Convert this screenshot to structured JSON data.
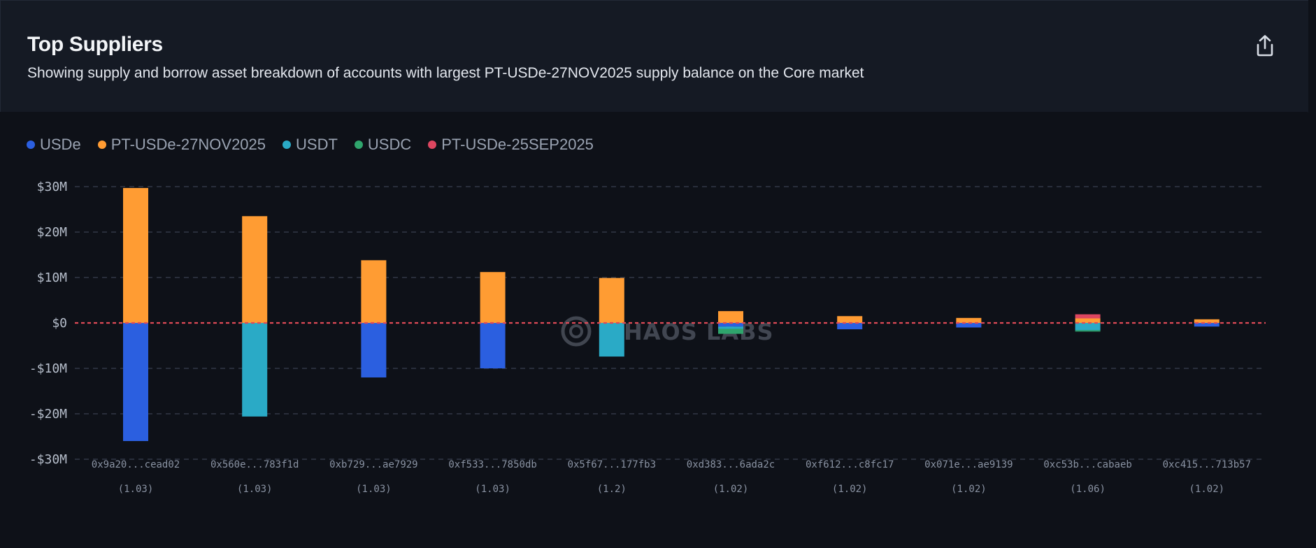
{
  "header": {
    "title": "Top Suppliers",
    "subtitle": "Showing supply and borrow asset breakdown of accounts with largest PT-USDe-27NOV2025 supply balance on the Core market",
    "export_icon": "share-upload-icon"
  },
  "watermark": {
    "text": "HAOS LABS",
    "icon": "chaos-labs-logo-icon"
  },
  "colors": {
    "background": "#0e1118",
    "header_bg": "#151a24",
    "grid": "#3a4150",
    "zero_line": "#e04a57"
  },
  "chart_data": {
    "type": "bar",
    "stacked": true,
    "ylim": [
      -30,
      30
    ],
    "y_unit": "$M",
    "y_ticks": [
      {
        "value": 30,
        "label": "$30M"
      },
      {
        "value": 20,
        "label": "$20M"
      },
      {
        "value": 10,
        "label": "$10M"
      },
      {
        "value": 0,
        "label": "$0"
      },
      {
        "value": -10,
        "label": "-$10M"
      },
      {
        "value": -20,
        "label": "-$20M"
      },
      {
        "value": -30,
        "label": "-$30M"
      }
    ],
    "grid": true,
    "legend_position": "top-left",
    "categories": [
      "0x9a20...cead02",
      "0x560e...783f1d",
      "0xb729...ae7929",
      "0xf533...7850db",
      "0x5f67...177fb3",
      "0xd383...6ada2c",
      "0xf612...c8fc17",
      "0x071e...ae9139",
      "0xc53b...cabaeb",
      "0xc415...713b57"
    ],
    "sublabels": [
      "(1.03)",
      "(1.03)",
      "(1.03)",
      "(1.03)",
      "(1.2)",
      "(1.02)",
      "(1.02)",
      "(1.02)",
      "(1.06)",
      "(1.02)"
    ],
    "series": [
      {
        "name": "USDe",
        "color": "#2b5fe0",
        "values": [
          -26,
          0,
          -12,
          -10,
          0,
          -0.8,
          -1.4,
          -1.0,
          0,
          -0.8
        ]
      },
      {
        "name": "PT-USDe-27NOV2025",
        "color": "#ff9c33",
        "values": [
          29.7,
          23.5,
          13.8,
          11.2,
          9.9,
          2.6,
          1.5,
          1.1,
          1.0,
          0.8
        ]
      },
      {
        "name": "USDT",
        "color": "#2aaac6",
        "values": [
          0,
          -20.6,
          0,
          0,
          -7.4,
          -0.5,
          0,
          0,
          -1.6,
          0
        ]
      },
      {
        "name": "USDC",
        "color": "#2fa56c",
        "values": [
          0,
          0,
          0,
          0,
          0,
          -1.1,
          0,
          0,
          -0.3,
          0
        ]
      },
      {
        "name": "PT-USDe-25SEP2025",
        "color": "#dd4660",
        "values": [
          0,
          0,
          0,
          0,
          0,
          0,
          0,
          0,
          0.9,
          0
        ]
      }
    ]
  }
}
